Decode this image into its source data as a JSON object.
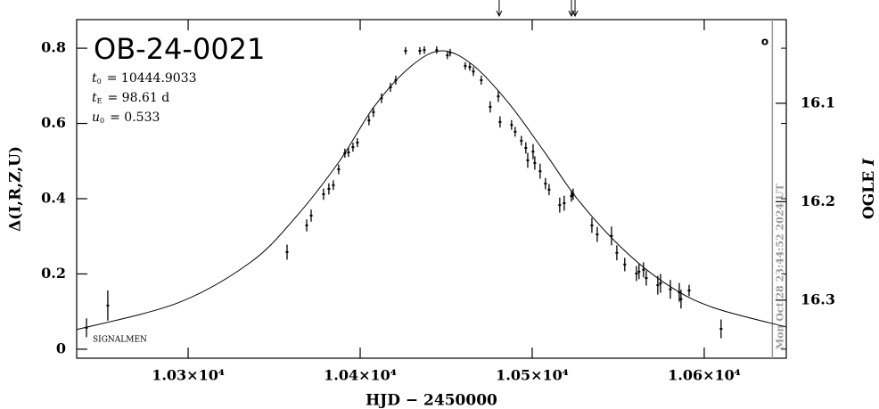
{
  "chart_data": {
    "type": "scatter",
    "title": "OB-24-0021",
    "parameters": [
      {
        "symbol": "t",
        "sub": "0",
        "text": "= 10444.9033"
      },
      {
        "symbol": "t",
        "sub": "E",
        "text": "= 98.61 d"
      },
      {
        "symbol": "u",
        "sub": "0",
        "text": "= 0.533"
      }
    ],
    "corner_mark": "o",
    "annotation": "SIGNALMEN",
    "x_label": "HJD − 2450000",
    "y_label": "Δ(I,R,Z,U)",
    "y2_label": "OGLE",
    "y2_label_italic": "I",
    "xlim": [
      10235.2,
      10647.7
    ],
    "ylim": [
      -0.024,
      0.876
    ],
    "y2lim": [
      16.359,
      16.015
    ],
    "xticks": [
      {
        "value": 10300,
        "label": "1.03×10⁴"
      },
      {
        "value": 10400,
        "label": "1.04×10⁴"
      },
      {
        "value": 10500,
        "label": "1.05×10⁴"
      },
      {
        "value": 10600,
        "label": "1.06×10⁴"
      }
    ],
    "yticks": [
      0,
      0.2,
      0.4,
      0.6,
      0.8
    ],
    "y2ticks": [
      16.1,
      16.2,
      16.3
    ],
    "color": "#000000",
    "points": {
      "x": [
        10240.9,
        10253.3,
        10357.5,
        10368.9,
        10371.5,
        10378.7,
        10381.8,
        10384.4,
        10387.5,
        10391.1,
        10393.2,
        10395.8,
        10398.4,
        10405.1,
        10407.7,
        10412.4,
        10417.6,
        10420.7,
        10426.4,
        10434.7,
        10437.3,
        10444.5,
        10450.7,
        10452.3,
        10461.1,
        10463.7,
        10465.8,
        10470.4,
        10475.6,
        10480.3,
        10481.3,
        10488,
        10490.1,
        10493.7,
        10496.3,
        10497.4,
        10500.5,
        10501.5,
        10504.6,
        10507.7,
        10509.8,
        10516,
        10518.6,
        10522.8,
        10523.8,
        10534.7,
        10537.8,
        10546.1,
        10549.2,
        10553.8,
        10560.6,
        10562.1,
        10564.7,
        10566.3,
        10573,
        10574.6,
        10580.3,
        10585.5,
        10586.5,
        10591.2,
        10609.8
      ],
      "y": [
        0.057,
        0.116,
        0.258,
        0.329,
        0.355,
        0.412,
        0.426,
        0.436,
        0.478,
        0.521,
        0.523,
        0.537,
        0.549,
        0.608,
        0.63,
        0.667,
        0.696,
        0.715,
        0.793,
        0.793,
        0.795,
        0.795,
        0.781,
        0.788,
        0.753,
        0.75,
        0.738,
        0.715,
        0.644,
        0.672,
        0.604,
        0.596,
        0.578,
        0.554,
        0.535,
        0.502,
        0.525,
        0.495,
        0.473,
        0.44,
        0.424,
        0.383,
        0.388,
        0.407,
        0.412,
        0.329,
        0.305,
        0.301,
        0.256,
        0.225,
        0.201,
        0.206,
        0.211,
        0.189,
        0.17,
        0.175,
        0.159,
        0.151,
        0.133,
        0.156,
        0.054
      ],
      "err": [
        0.025,
        0.04,
        0.02,
        0.016,
        0.016,
        0.015,
        0.015,
        0.013,
        0.013,
        0.012,
        0.012,
        0.012,
        0.012,
        0.013,
        0.013,
        0.013,
        0.012,
        0.012,
        0.01,
        0.01,
        0.01,
        0.01,
        0.01,
        0.01,
        0.01,
        0.01,
        0.012,
        0.012,
        0.015,
        0.015,
        0.015,
        0.013,
        0.013,
        0.013,
        0.015,
        0.02,
        0.02,
        0.018,
        0.02,
        0.015,
        0.015,
        0.02,
        0.02,
        0.015,
        0.015,
        0.02,
        0.02,
        0.025,
        0.02,
        0.018,
        0.02,
        0.02,
        0.02,
        0.02,
        0.025,
        0.025,
        0.025,
        0.025,
        0.025,
        0.015,
        0.025
      ]
    },
    "model": {
      "x": [
        10235.2,
        10294,
        10336,
        10362,
        10388,
        10408,
        10429,
        10447,
        10465,
        10486,
        10507,
        10527,
        10553,
        10579,
        10605,
        10647.7
      ],
      "y": [
        0.052,
        0.123,
        0.23,
        0.348,
        0.5,
        0.644,
        0.75,
        0.793,
        0.757,
        0.656,
        0.525,
        0.395,
        0.265,
        0.17,
        0.111,
        0.059
      ]
    },
    "arrows_x": [
      10480.8,
      10522.8,
      10524.9
    ],
    "now_line": {
      "x": 10639.6,
      "label": "Mon Oct 28 23:44:52 2024 UT",
      "color": "#999999"
    }
  }
}
